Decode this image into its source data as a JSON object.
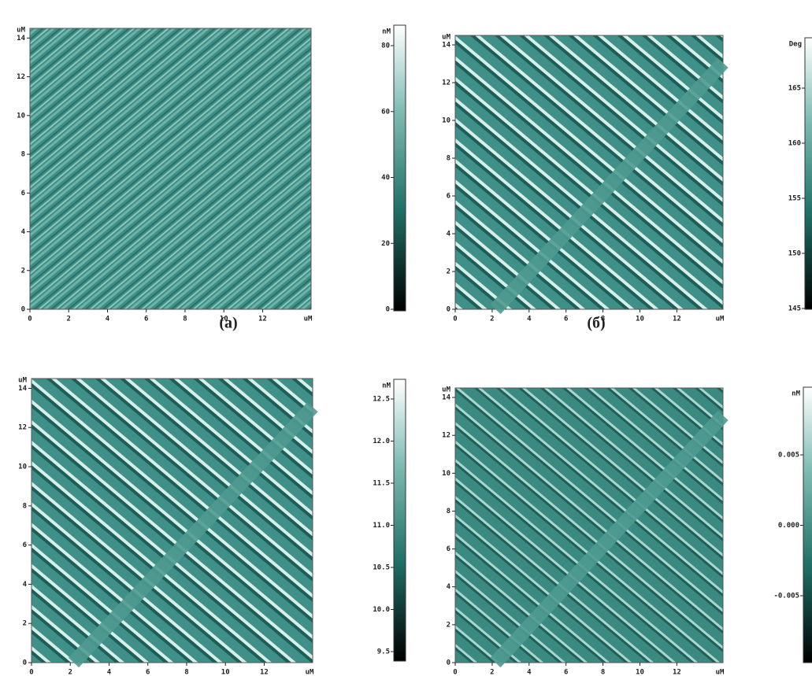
{
  "panels": [
    {
      "caption": "(a)",
      "image": {
        "yticks": [
          "0",
          "2",
          "4",
          "6",
          "8",
          "10",
          "12",
          "14"
        ],
        "xticks": [
          "0",
          "2",
          "4",
          "6",
          "8",
          "10",
          "12"
        ],
        "y_unit": "uM",
        "x_unit": "uM"
      },
      "colorbar": {
        "unit": "nM",
        "ticks": [
          "80",
          "60",
          "40",
          "20",
          "0"
        ]
      }
    },
    {
      "caption": "(б)",
      "image": {
        "yticks": [
          "0",
          "2",
          "4",
          "6",
          "8",
          "10",
          "12",
          "14"
        ],
        "xticks": [
          "0",
          "2",
          "4",
          "6",
          "8",
          "10",
          "12"
        ],
        "y_unit": "uM",
        "x_unit": "uM"
      },
      "colorbar": {
        "unit": "Deg",
        "ticks": [
          "165",
          "160",
          "155",
          "150",
          "145"
        ]
      }
    },
    {
      "image": {
        "yticks": [
          "0",
          "2",
          "4",
          "6",
          "8",
          "10",
          "12",
          "14"
        ],
        "xticks": [
          "0",
          "2",
          "4",
          "6",
          "8",
          "10",
          "12"
        ],
        "y_unit": "uM",
        "x_unit": "uM"
      },
      "colorbar": {
        "unit": "nM",
        "ticks": [
          "12.5",
          "12.0",
          "11.5",
          "11.0",
          "10.5",
          "10.0",
          "9.5"
        ]
      }
    },
    {
      "image": {
        "yticks": [
          "0",
          "2",
          "4",
          "6",
          "8",
          "10",
          "12",
          "14"
        ],
        "xticks": [
          "0",
          "2",
          "4",
          "6",
          "8",
          "10",
          "12"
        ],
        "y_unit": "uM",
        "x_unit": "uM"
      },
      "colorbar": {
        "unit": "nM",
        "ticks": [
          "0.005",
          "0.000",
          "-0.005"
        ]
      }
    }
  ]
}
